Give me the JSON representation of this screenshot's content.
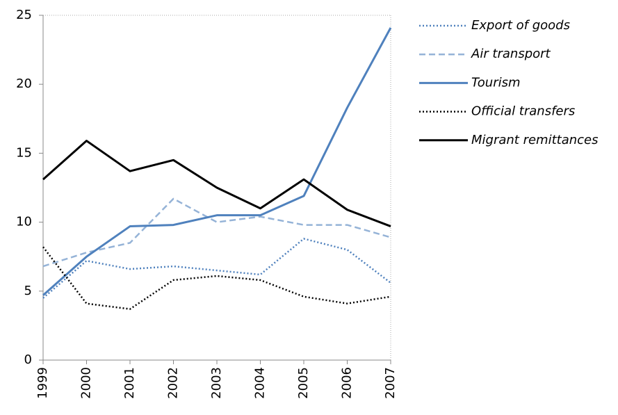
{
  "chart_data": {
    "type": "line",
    "categories": [
      "1999",
      "2000",
      "2001",
      "2002",
      "2003",
      "2004",
      "2005",
      "2006",
      "2007"
    ],
    "series": [
      {
        "name": "Export of goods",
        "color": "#4f81bd",
        "line_style": "dotted",
        "values": [
          4.5,
          7.2,
          6.6,
          6.8,
          6.5,
          6.2,
          8.8,
          8.0,
          5.6
        ]
      },
      {
        "name": "Air transport",
        "color": "#95b3d7",
        "line_style": "dashed",
        "values": [
          6.8,
          7.8,
          8.5,
          11.7,
          10.0,
          10.4,
          9.8,
          9.8,
          8.9
        ]
      },
      {
        "name": "Tourism",
        "color": "#4f81bd",
        "line_style": "solid",
        "values": [
          4.7,
          7.5,
          9.7,
          9.8,
          10.5,
          10.5,
          11.9,
          18.3,
          24.1
        ]
      },
      {
        "name": "Official transfers",
        "color": "#000000",
        "line_style": "dotted",
        "values": [
          8.2,
          4.1,
          3.7,
          5.8,
          6.1,
          5.8,
          4.6,
          4.1,
          4.6
        ]
      },
      {
        "name": "Migrant remittances",
        "color": "#000000",
        "line_style": "solid",
        "values": [
          13.1,
          15.9,
          13.7,
          14.5,
          12.5,
          11.0,
          13.1,
          10.9,
          9.7
        ]
      }
    ],
    "ylim": [
      0,
      25
    ],
    "yticks": [
      0,
      5,
      10,
      15,
      20,
      25
    ],
    "legend": "right"
  }
}
